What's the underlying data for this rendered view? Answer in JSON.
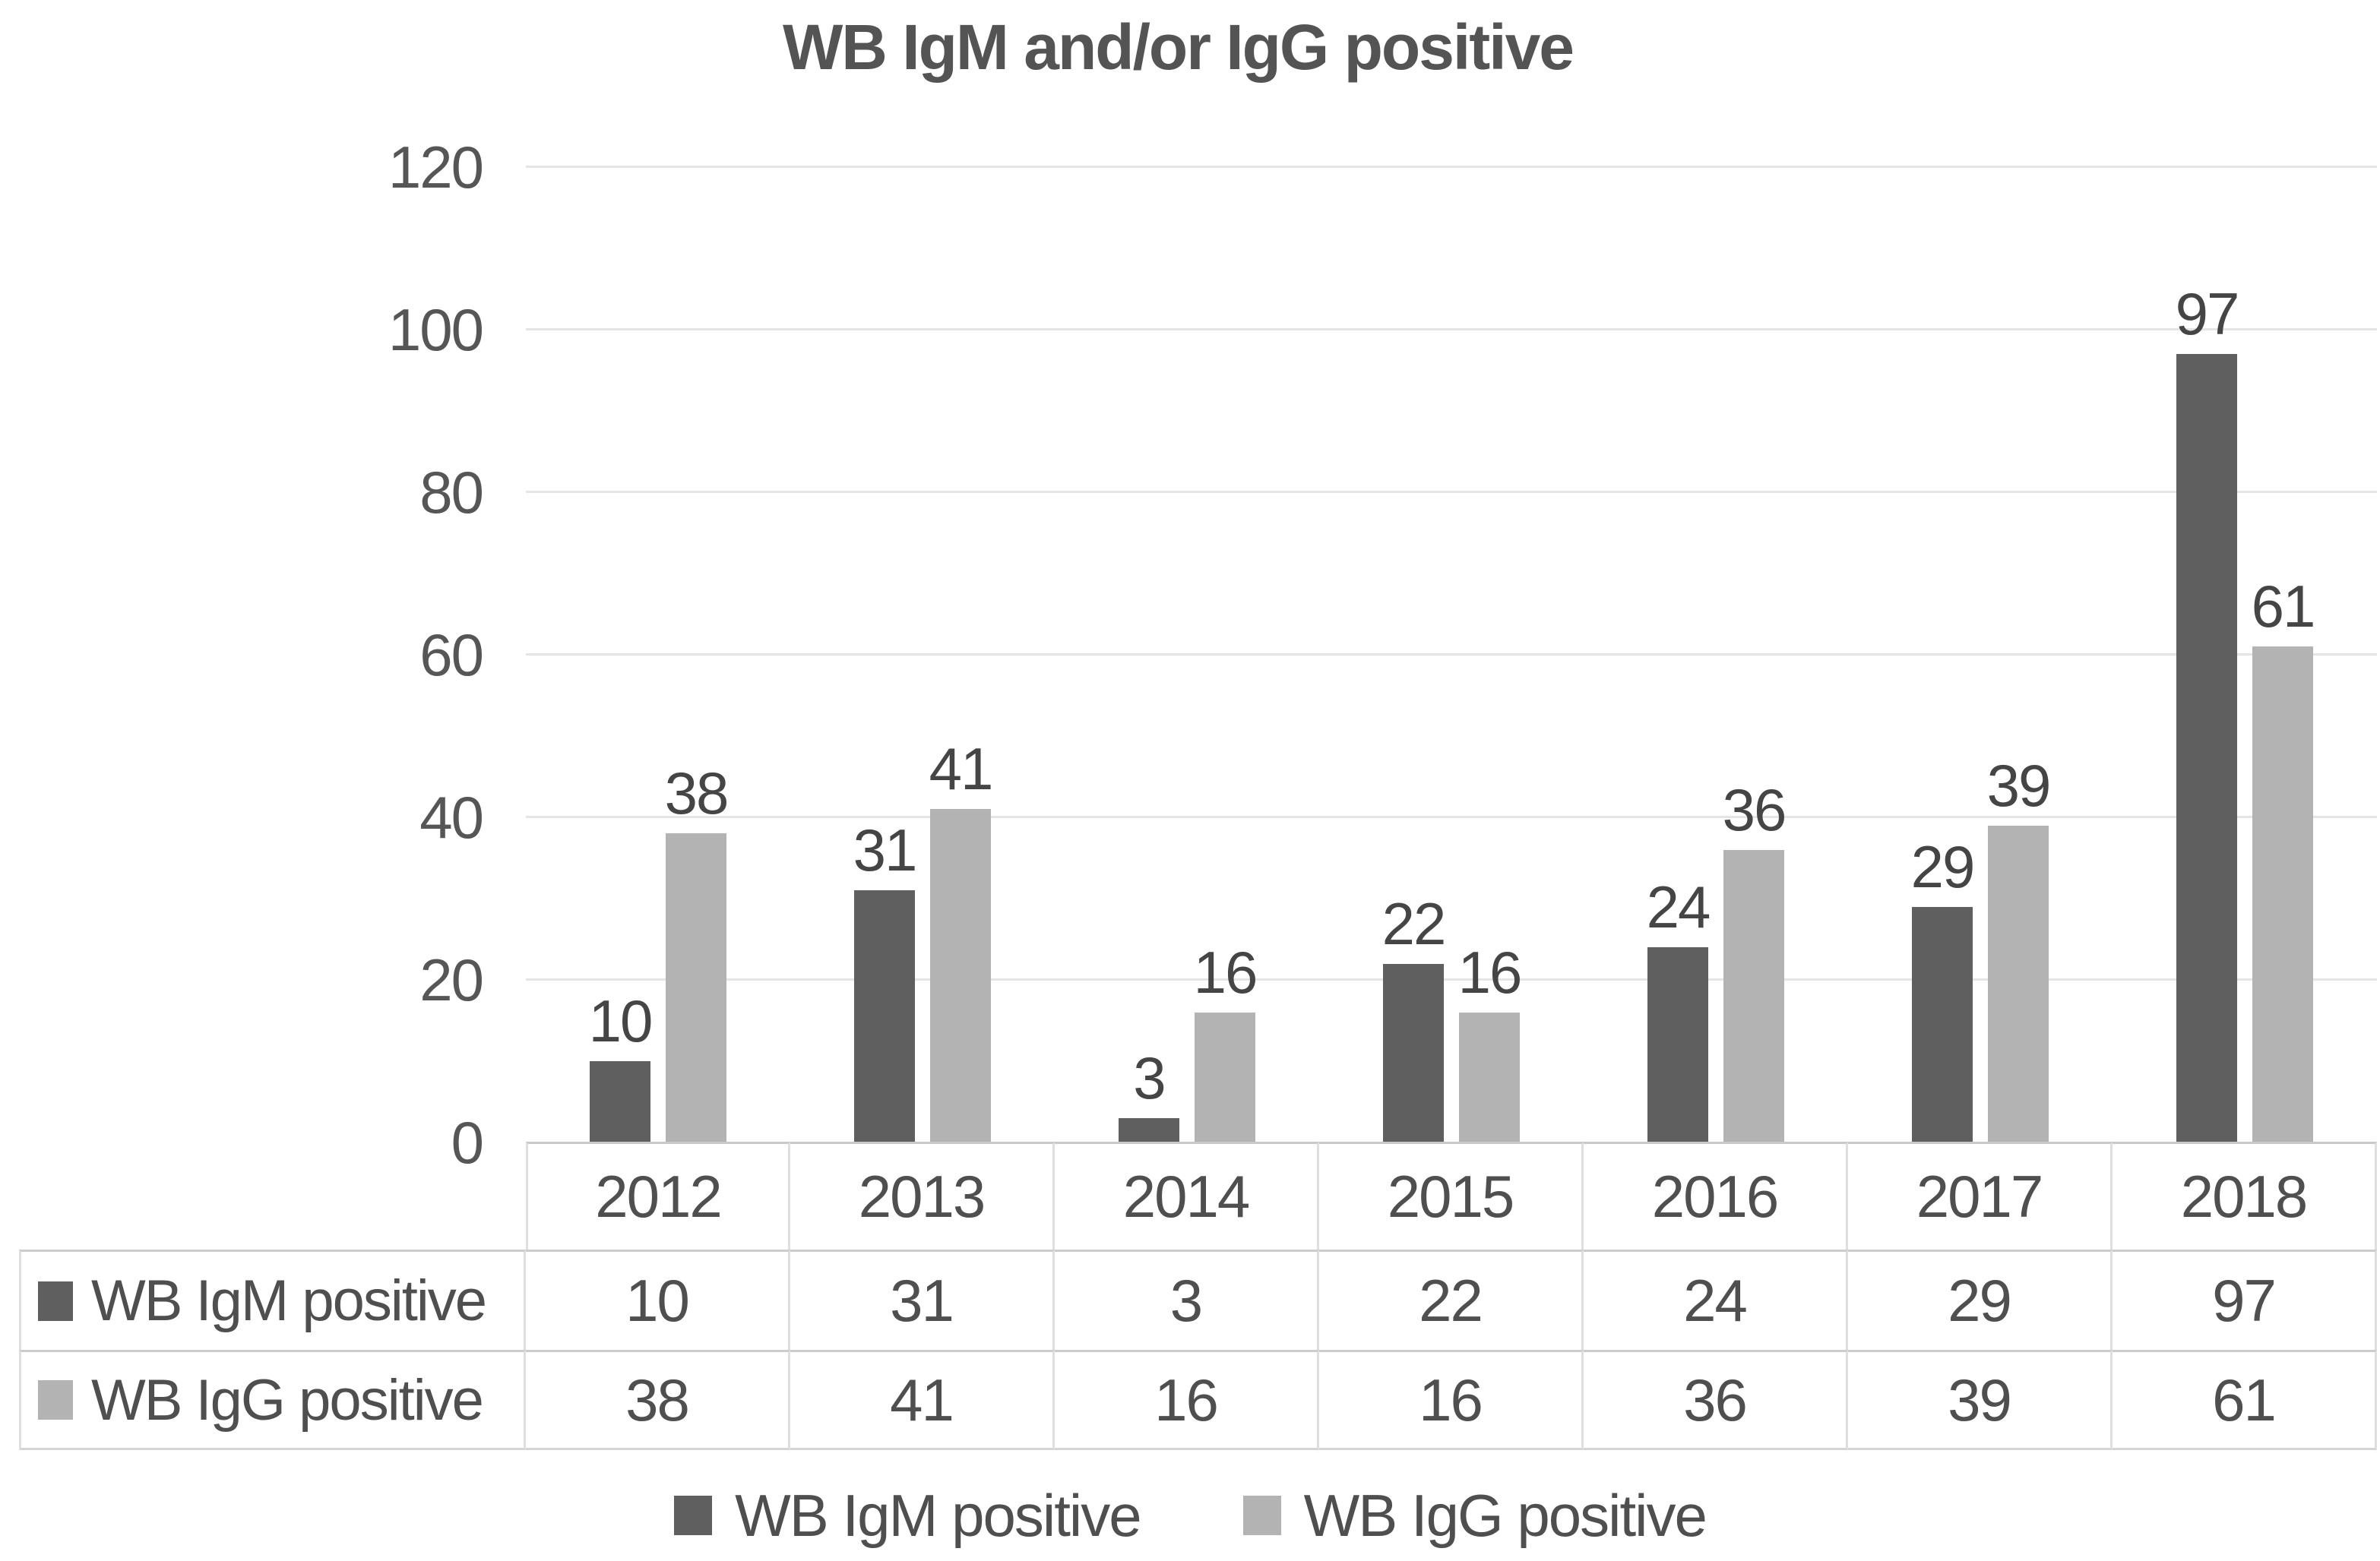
{
  "title": "WB IgM and/or IgG positive",
  "colors": {
    "igm_series": "#5f5f5f",
    "igg_series": "#b3b3b3",
    "gridline": "#e5e5e5",
    "table_border": "#d4d4d4",
    "text": "#4f4f4f",
    "data_label_text": "#454545"
  },
  "chart_data": {
    "type": "bar",
    "title": "WB IgM and/or IgG positive",
    "categories": [
      "2012",
      "2013",
      "2014",
      "2015",
      "2016",
      "2017",
      "2018"
    ],
    "series": [
      {
        "name": "WB IgM positive",
        "color": "#5f5f5f",
        "values": [
          10,
          31,
          3,
          22,
          24,
          29,
          97
        ]
      },
      {
        "name": "WB IgG positive",
        "color": "#b3b3b3",
        "values": [
          38,
          41,
          16,
          16,
          36,
          39,
          61
        ]
      }
    ],
    "ylim": [
      0,
      120
    ],
    "yticks": [
      0,
      20,
      40,
      60,
      80,
      100,
      120
    ],
    "xlabel": "",
    "ylabel": "",
    "grid": true,
    "data_labels": true,
    "data_table": true,
    "legend_position": "bottom"
  }
}
